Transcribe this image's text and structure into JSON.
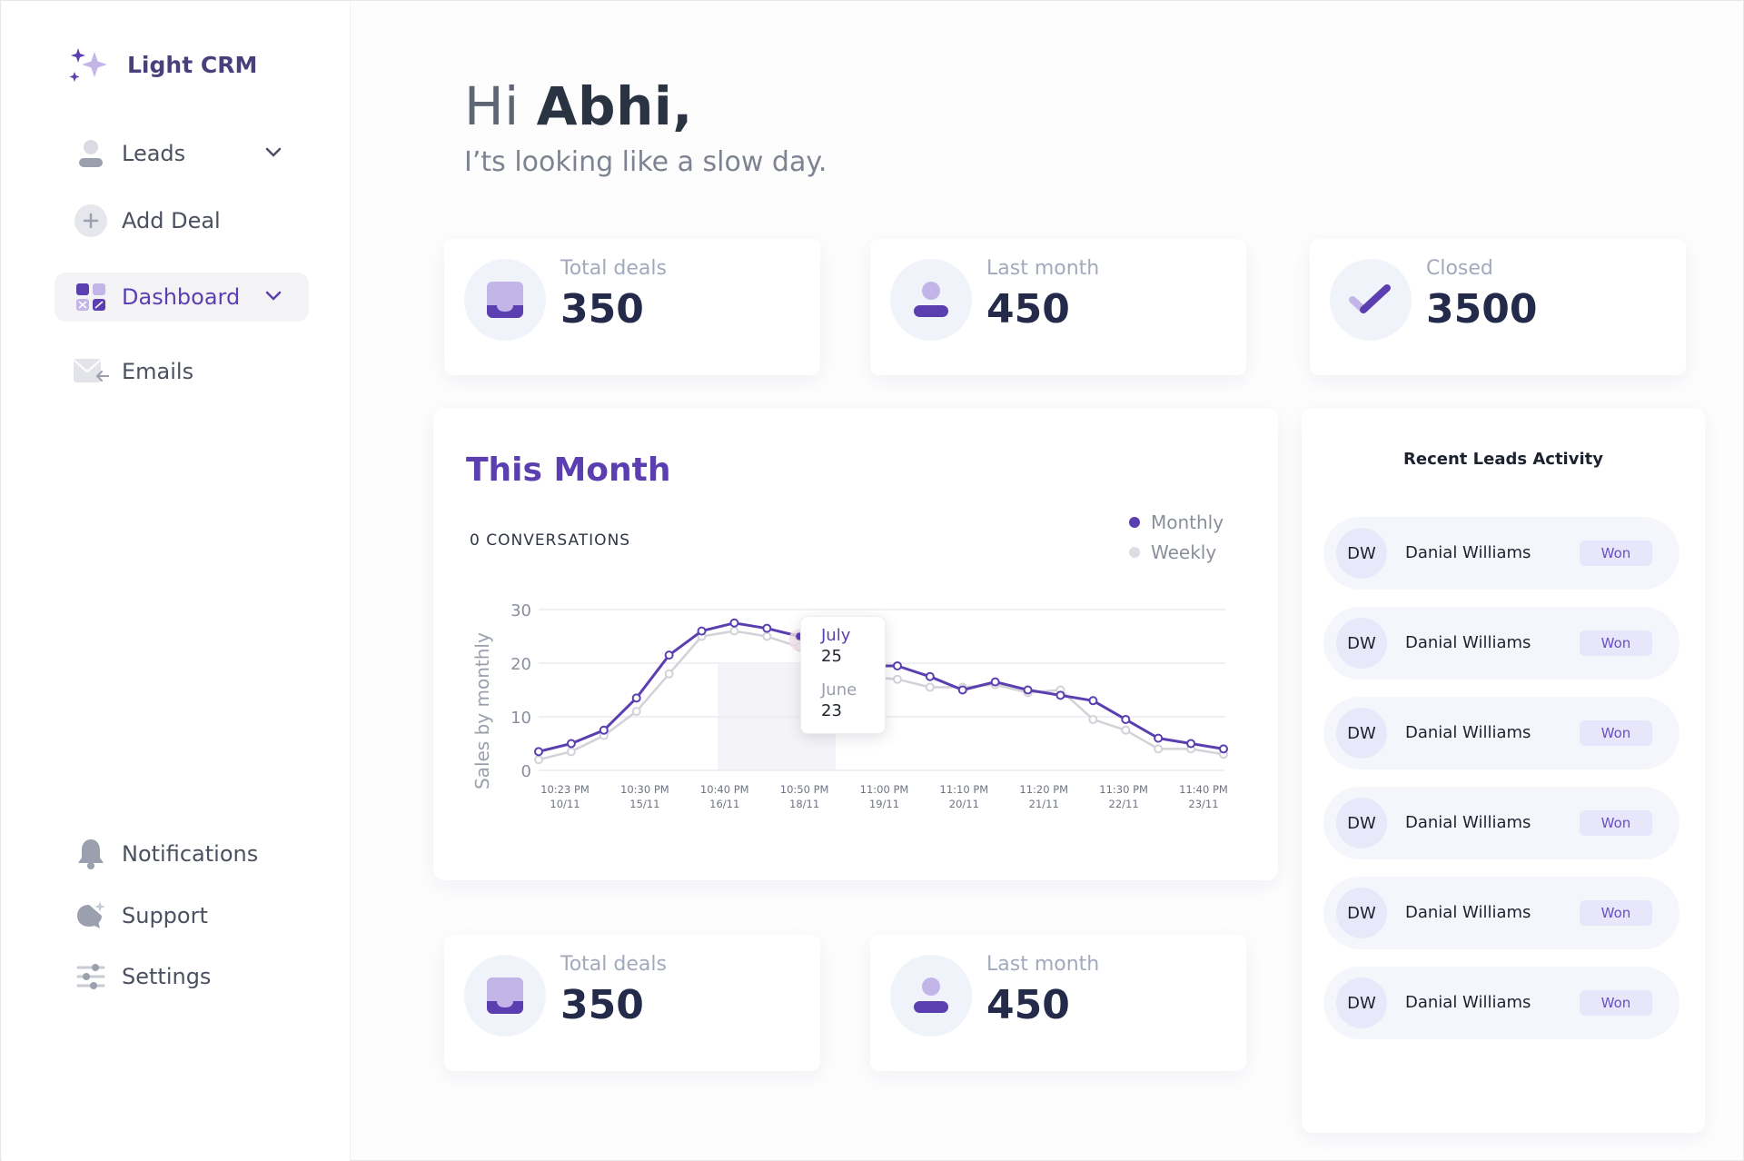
{
  "brand": {
    "name": "Light CRM"
  },
  "sidebar": {
    "items": [
      {
        "label": "Leads"
      },
      {
        "label": "Add Deal"
      },
      {
        "label": "Dashboard"
      },
      {
        "label": "Emails"
      }
    ],
    "bottom": [
      {
        "label": "Notifications"
      },
      {
        "label": "Support"
      },
      {
        "label": "Settings"
      }
    ]
  },
  "header": {
    "greeting_hi": "Hi",
    "greeting_name": "Abhi,",
    "subtitle": "I’ts looking like a slow day."
  },
  "stats_top": [
    {
      "label": "Total deals",
      "value": "350",
      "icon": "inbox-icon"
    },
    {
      "label": "Last month",
      "value": "450",
      "icon": "user-icon"
    },
    {
      "label": "Closed",
      "value": "3500",
      "icon": "check-icon"
    }
  ],
  "stats_bottom": [
    {
      "label": "Total deals",
      "value": "350",
      "icon": "inbox-icon"
    },
    {
      "label": "Last month",
      "value": "450",
      "icon": "user-icon"
    }
  ],
  "chart": {
    "title": "This Month",
    "conversations": "0 CONVERSATIONS",
    "tooltip": {
      "m1": "July",
      "v1": "25",
      "m2": "June",
      "v2": "23"
    }
  },
  "chart_data": {
    "type": "line",
    "ylabel": "Sales by monthly",
    "ylim": [
      0,
      30
    ],
    "yticks": [
      "0",
      "10",
      "20",
      "30"
    ],
    "xticks": [
      [
        "10:23 PM",
        "10/11"
      ],
      [
        "10:30 PM",
        "15/11"
      ],
      [
        "10:40 PM",
        "16/11"
      ],
      [
        "10:50 PM",
        "18/11"
      ],
      [
        "11:00 PM",
        "19/11"
      ],
      [
        "11:10 PM",
        "20/11"
      ],
      [
        "11:20 PM",
        "21/11"
      ],
      [
        "11:30 PM",
        "22/11"
      ],
      [
        "11:40 PM",
        "23/11"
      ]
    ],
    "legend": [
      "Monthly",
      "Weekly"
    ],
    "series": [
      {
        "name": "Monthly",
        "color": "#5b3fb0",
        "values": [
          3.5,
          5,
          7.5,
          13.5,
          21.5,
          26,
          27.5,
          26.5,
          25,
          22.5,
          19.5,
          19.5,
          17.5,
          15,
          16.5,
          15,
          14,
          13,
          9.5,
          6,
          5,
          4
        ]
      },
      {
        "name": "Weekly",
        "color": "#d2d2d8",
        "values": [
          2,
          3.5,
          6.5,
          11,
          18,
          25,
          26,
          25,
          23,
          20.5,
          17.5,
          17,
          15.5,
          15.5,
          16,
          14.5,
          15,
          9.5,
          7.5,
          4,
          4,
          3
        ]
      }
    ]
  },
  "activity": {
    "title": "Recent Leads Activity",
    "items": [
      {
        "initials": "DW",
        "name": "Danial Williams",
        "status": "Won"
      },
      {
        "initials": "DW",
        "name": "Danial Williams",
        "status": "Won"
      },
      {
        "initials": "DW",
        "name": "Danial Williams",
        "status": "Won"
      },
      {
        "initials": "DW",
        "name": "Danial Williams",
        "status": "Won"
      },
      {
        "initials": "DW",
        "name": "Danial Williams",
        "status": "Won"
      },
      {
        "initials": "DW",
        "name": "Danial Williams",
        "status": "Won"
      }
    ]
  }
}
